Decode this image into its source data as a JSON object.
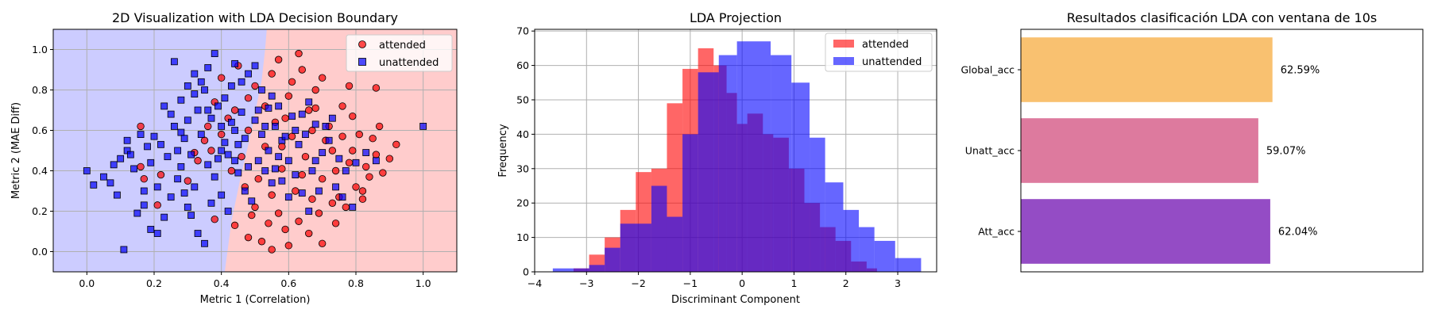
{
  "colors": {
    "attended": "#ff0000",
    "unattended": "#0000ff",
    "region_attended": "#ffcccc",
    "region_unattended": "#ccccff",
    "bar_global": "#f9c170",
    "bar_unatt": "#dd7a9e",
    "bar_att": "#944cc5"
  },
  "chart_data": [
    {
      "type": "scatter",
      "title": "2D Visualization with LDA Decision Boundary",
      "xlabel": "Metric 1 (Correlation)",
      "ylabel": "Metric 2 (MAE Diff)",
      "xlim": [
        -0.1,
        1.1
      ],
      "ylim": [
        -0.1,
        1.1
      ],
      "xticks": [
        "0.0",
        "0.2",
        "0.4",
        "0.6",
        "0.8",
        "1.0"
      ],
      "yticks": [
        "0.0",
        "0.2",
        "0.4",
        "0.6",
        "0.8",
        "1.0"
      ],
      "grid": true,
      "legend": "top-right",
      "decision_boundary": [
        [
          0.535,
          1.1
        ],
        [
          0.53,
          1.0
        ],
        [
          0.52,
          0.85
        ],
        [
          0.49,
          0.6
        ],
        [
          0.455,
          0.35
        ],
        [
          0.43,
          0.15
        ],
        [
          0.41,
          -0.1
        ]
      ],
      "series": [
        {
          "name": "attended",
          "marker": "circle",
          "points": [
            [
              0.86,
              0.81
            ],
            [
              0.78,
              0.82
            ],
            [
              0.92,
              0.53
            ],
            [
              0.79,
              0.67
            ],
            [
              0.85,
              0.56
            ],
            [
              0.84,
              0.37
            ],
            [
              0.9,
              0.46
            ],
            [
              0.83,
              0.42
            ],
            [
              0.8,
              0.32
            ],
            [
              0.82,
              0.26
            ],
            [
              0.77,
              0.22
            ],
            [
              0.74,
              0.14
            ],
            [
              0.7,
              0.04
            ],
            [
              0.66,
              0.09
            ],
            [
              0.6,
              0.03
            ],
            [
              0.55,
              0.01
            ],
            [
              0.52,
              0.05
            ],
            [
              0.48,
              0.07
            ],
            [
              0.44,
              0.13
            ],
            [
              0.69,
              0.19
            ],
            [
              0.75,
              0.27
            ],
            [
              0.72,
              0.62
            ],
            [
              0.76,
              0.72
            ],
            [
              0.68,
              0.8
            ],
            [
              0.64,
              0.9
            ],
            [
              0.57,
              0.95
            ],
            [
              0.63,
              0.98
            ],
            [
              0.7,
              0.86
            ],
            [
              0.6,
              0.77
            ],
            [
              0.66,
              0.7
            ],
            [
              0.73,
              0.5
            ],
            [
              0.78,
              0.44
            ],
            [
              0.81,
              0.58
            ],
            [
              0.87,
              0.62
            ],
            [
              0.7,
              0.36
            ],
            [
              0.62,
              0.3
            ],
            [
              0.55,
              0.28
            ],
            [
              0.5,
              0.22
            ],
            [
              0.47,
              0.32
            ],
            [
              0.58,
              0.41
            ],
            [
              0.65,
              0.47
            ],
            [
              0.61,
              0.57
            ],
            [
              0.56,
              0.64
            ],
            [
              0.53,
              0.72
            ],
            [
              0.5,
              0.82
            ],
            [
              0.45,
              0.92
            ],
            [
              0.4,
              0.86
            ],
            [
              0.38,
              0.74
            ],
            [
              0.35,
              0.55
            ],
            [
              0.33,
              0.45
            ],
            [
              0.3,
              0.35
            ],
            [
              0.21,
              0.23
            ],
            [
              0.22,
              0.38
            ],
            [
              0.17,
              0.36
            ],
            [
              0.16,
              0.62
            ],
            [
              0.16,
              0.42
            ],
            [
              0.38,
              0.16
            ],
            [
              0.32,
              0.49
            ],
            [
              0.42,
              0.66
            ],
            [
              0.48,
              0.6
            ],
            [
              0.53,
              0.52
            ],
            [
              0.59,
              0.66
            ],
            [
              0.67,
              0.6
            ],
            [
              0.74,
              0.4
            ],
            [
              0.63,
              0.15
            ],
            [
              0.57,
              0.19
            ],
            [
              0.51,
              0.36
            ],
            [
              0.46,
              0.47
            ],
            [
              0.43,
              0.4
            ],
            [
              0.68,
              0.71
            ],
            [
              0.71,
              0.55
            ],
            [
              0.76,
              0.57
            ],
            [
              0.79,
              0.5
            ],
            [
              0.86,
              0.48
            ],
            [
              0.88,
              0.39
            ],
            [
              0.82,
              0.3
            ],
            [
              0.73,
              0.24
            ],
            [
              0.67,
              0.26
            ],
            [
              0.59,
              0.11
            ],
            [
              0.54,
              0.14
            ],
            [
              0.49,
              0.18
            ],
            [
              0.61,
              0.84
            ],
            [
              0.55,
              0.88
            ],
            [
              0.48,
              0.76
            ],
            [
              0.44,
              0.7
            ],
            [
              0.4,
              0.58
            ],
            [
              0.37,
              0.5
            ],
            [
              0.36,
              0.62
            ],
            [
              0.58,
              0.52
            ],
            [
              0.64,
              0.38
            ]
          ]
        },
        {
          "name": "unattended",
          "marker": "square",
          "points": [
            [
              0.0,
              0.4
            ],
            [
              0.02,
              0.33
            ],
            [
              0.05,
              0.37
            ],
            [
              0.07,
              0.34
            ],
            [
              0.09,
              0.28
            ],
            [
              0.12,
              0.55
            ],
            [
              0.12,
              0.5
            ],
            [
              0.14,
              0.41
            ],
            [
              0.11,
              0.01
            ],
            [
              0.15,
              0.19
            ],
            [
              0.17,
              0.23
            ],
            [
              0.19,
              0.11
            ],
            [
              0.2,
              0.57
            ],
            [
              0.21,
              0.09
            ],
            [
              0.23,
              0.17
            ],
            [
              0.25,
              0.27
            ],
            [
              0.26,
              0.94
            ],
            [
              0.28,
              0.75
            ],
            [
              0.3,
              0.65
            ],
            [
              0.32,
              0.78
            ],
            [
              0.34,
              0.84
            ],
            [
              0.36,
              0.91
            ],
            [
              0.38,
              0.98
            ],
            [
              0.4,
              0.5
            ],
            [
              0.42,
              0.48
            ],
            [
              0.44,
              0.6
            ],
            [
              0.46,
              0.69
            ],
            [
              0.48,
              0.88
            ],
            [
              0.5,
              0.92
            ],
            [
              0.52,
              0.8
            ],
            [
              0.54,
              0.71
            ],
            [
              0.56,
              0.62
            ],
            [
              0.58,
              0.55
            ],
            [
              0.6,
              0.45
            ],
            [
              0.62,
              0.38
            ],
            [
              0.64,
              0.29
            ],
            [
              0.66,
              0.2
            ],
            [
              0.68,
              0.45
            ],
            [
              0.7,
              0.49
            ],
            [
              0.72,
              0.55
            ],
            [
              0.74,
              0.32
            ],
            [
              0.76,
              0.27
            ],
            [
              0.79,
              0.22
            ],
            [
              0.83,
              0.49
            ],
            [
              0.86,
              0.45
            ],
            [
              1.0,
              0.62
            ],
            [
              0.35,
              0.04
            ],
            [
              0.33,
              0.09
            ],
            [
              0.31,
              0.18
            ],
            [
              0.29,
              0.29
            ],
            [
              0.27,
              0.36
            ],
            [
              0.24,
              0.47
            ],
            [
              0.22,
              0.53
            ],
            [
              0.18,
              0.52
            ],
            [
              0.16,
              0.58
            ],
            [
              0.13,
              0.48
            ],
            [
              0.1,
              0.46
            ],
            [
              0.08,
              0.43
            ],
            [
              0.26,
              0.62
            ],
            [
              0.28,
              0.59
            ],
            [
              0.34,
              0.58
            ],
            [
              0.37,
              0.66
            ],
            [
              0.39,
              0.72
            ],
            [
              0.41,
              0.76
            ],
            [
              0.43,
              0.82
            ],
            [
              0.45,
              0.39
            ],
            [
              0.47,
              0.3
            ],
            [
              0.49,
              0.25
            ],
            [
              0.51,
              0.45
            ],
            [
              0.53,
              0.4
            ],
            [
              0.55,
              0.34
            ],
            [
              0.57,
              0.47
            ],
            [
              0.59,
              0.57
            ],
            [
              0.61,
              0.67
            ],
            [
              0.63,
              0.53
            ],
            [
              0.65,
              0.58
            ],
            [
              0.67,
              0.4
            ],
            [
              0.69,
              0.3
            ],
            [
              0.71,
              0.62
            ],
            [
              0.73,
              0.66
            ],
            [
              0.75,
              0.46
            ],
            [
              0.77,
              0.4
            ],
            [
              0.8,
              0.44
            ],
            [
              0.3,
              0.22
            ],
            [
              0.32,
              0.32
            ],
            [
              0.36,
              0.43
            ],
            [
              0.38,
              0.37
            ],
            [
              0.4,
              0.28
            ],
            [
              0.42,
              0.2
            ],
            [
              0.21,
              0.32
            ],
            [
              0.19,
              0.44
            ],
            [
              0.17,
              0.3
            ],
            [
              0.23,
              0.72
            ],
            [
              0.25,
              0.68
            ],
            [
              0.33,
              0.7
            ],
            [
              0.35,
              0.8
            ],
            [
              0.44,
              0.93
            ],
            [
              0.46,
              0.84
            ],
            [
              0.5,
              0.65
            ],
            [
              0.52,
              0.58
            ],
            [
              0.54,
              0.5
            ],
            [
              0.56,
              0.41
            ],
            [
              0.58,
              0.35
            ],
            [
              0.6,
              0.27
            ],
            [
              0.62,
              0.6
            ],
            [
              0.64,
              0.68
            ],
            [
              0.66,
              0.74
            ],
            [
              0.68,
              0.63
            ],
            [
              0.41,
              0.54
            ],
            [
              0.43,
              0.64
            ],
            [
              0.39,
              0.46
            ],
            [
              0.37,
              0.24
            ],
            [
              0.28,
              0.42
            ],
            [
              0.27,
              0.5
            ],
            [
              0.29,
              0.56
            ],
            [
              0.31,
              0.48
            ],
            [
              0.45,
              0.53
            ],
            [
              0.48,
              0.42
            ],
            [
              0.53,
              0.62
            ],
            [
              0.57,
              0.72
            ],
            [
              0.55,
              0.77
            ],
            [
              0.51,
              0.7
            ],
            [
              0.47,
              0.56
            ],
            [
              0.44,
              0.45
            ],
            [
              0.3,
              0.82
            ],
            [
              0.32,
              0.88
            ],
            [
              0.36,
              0.7
            ],
            [
              0.4,
              0.62
            ]
          ]
        }
      ]
    },
    {
      "type": "histogram",
      "title": "LDA Projection",
      "xlabel": "Discriminant Component",
      "ylabel": "Frequency",
      "xlim": [
        -4.0,
        3.75
      ],
      "ylim": [
        0,
        70.5
      ],
      "xticks": [
        "−4",
        "−3",
        "−2",
        "−1",
        "0",
        "1",
        "2",
        "3"
      ],
      "yticks": [
        "0",
        "10",
        "20",
        "30",
        "40",
        "50",
        "60",
        "70"
      ],
      "grid": true,
      "legend": "top-right",
      "series": [
        {
          "name": "attended",
          "edges": [
            -3.25,
            -2.95,
            -2.65,
            -2.35,
            -2.05,
            -1.75,
            -1.45,
            -1.15,
            -0.85,
            -0.55,
            -0.3,
            -0.1,
            0.1,
            0.4,
            0.6,
            0.9,
            1.2,
            1.5,
            1.8,
            2.1,
            2.4,
            2.6
          ],
          "counts": [
            1,
            5,
            10,
            18,
            29,
            30,
            49,
            59,
            65,
            60,
            52,
            43,
            46,
            40,
            39,
            30,
            20,
            13,
            9,
            3,
            1
          ]
        },
        {
          "name": "unattended",
          "edges": [
            -3.65,
            -2.95,
            -2.65,
            -2.35,
            -1.75,
            -1.45,
            -1.15,
            -0.85,
            -0.45,
            -0.1,
            0.55,
            0.95,
            1.3,
            1.6,
            1.95,
            2.25,
            2.55,
            2.95,
            3.45
          ],
          "counts": [
            1,
            2,
            7,
            14,
            25,
            16,
            40,
            58,
            63,
            67,
            63,
            55,
            39,
            26,
            18,
            13,
            9,
            4
          ]
        }
      ]
    },
    {
      "type": "bar",
      "orientation": "horizontal",
      "title": "Resultados clasificación LDA con ventana de 10s",
      "xlim": [
        0,
        100
      ],
      "categories": [
        "Global_acc",
        "Unatt_acc",
        "Att_acc"
      ],
      "values": [
        62.59,
        59.07,
        62.04
      ],
      "labels": [
        "62.59%",
        "59.07%",
        "62.04%"
      ]
    }
  ]
}
